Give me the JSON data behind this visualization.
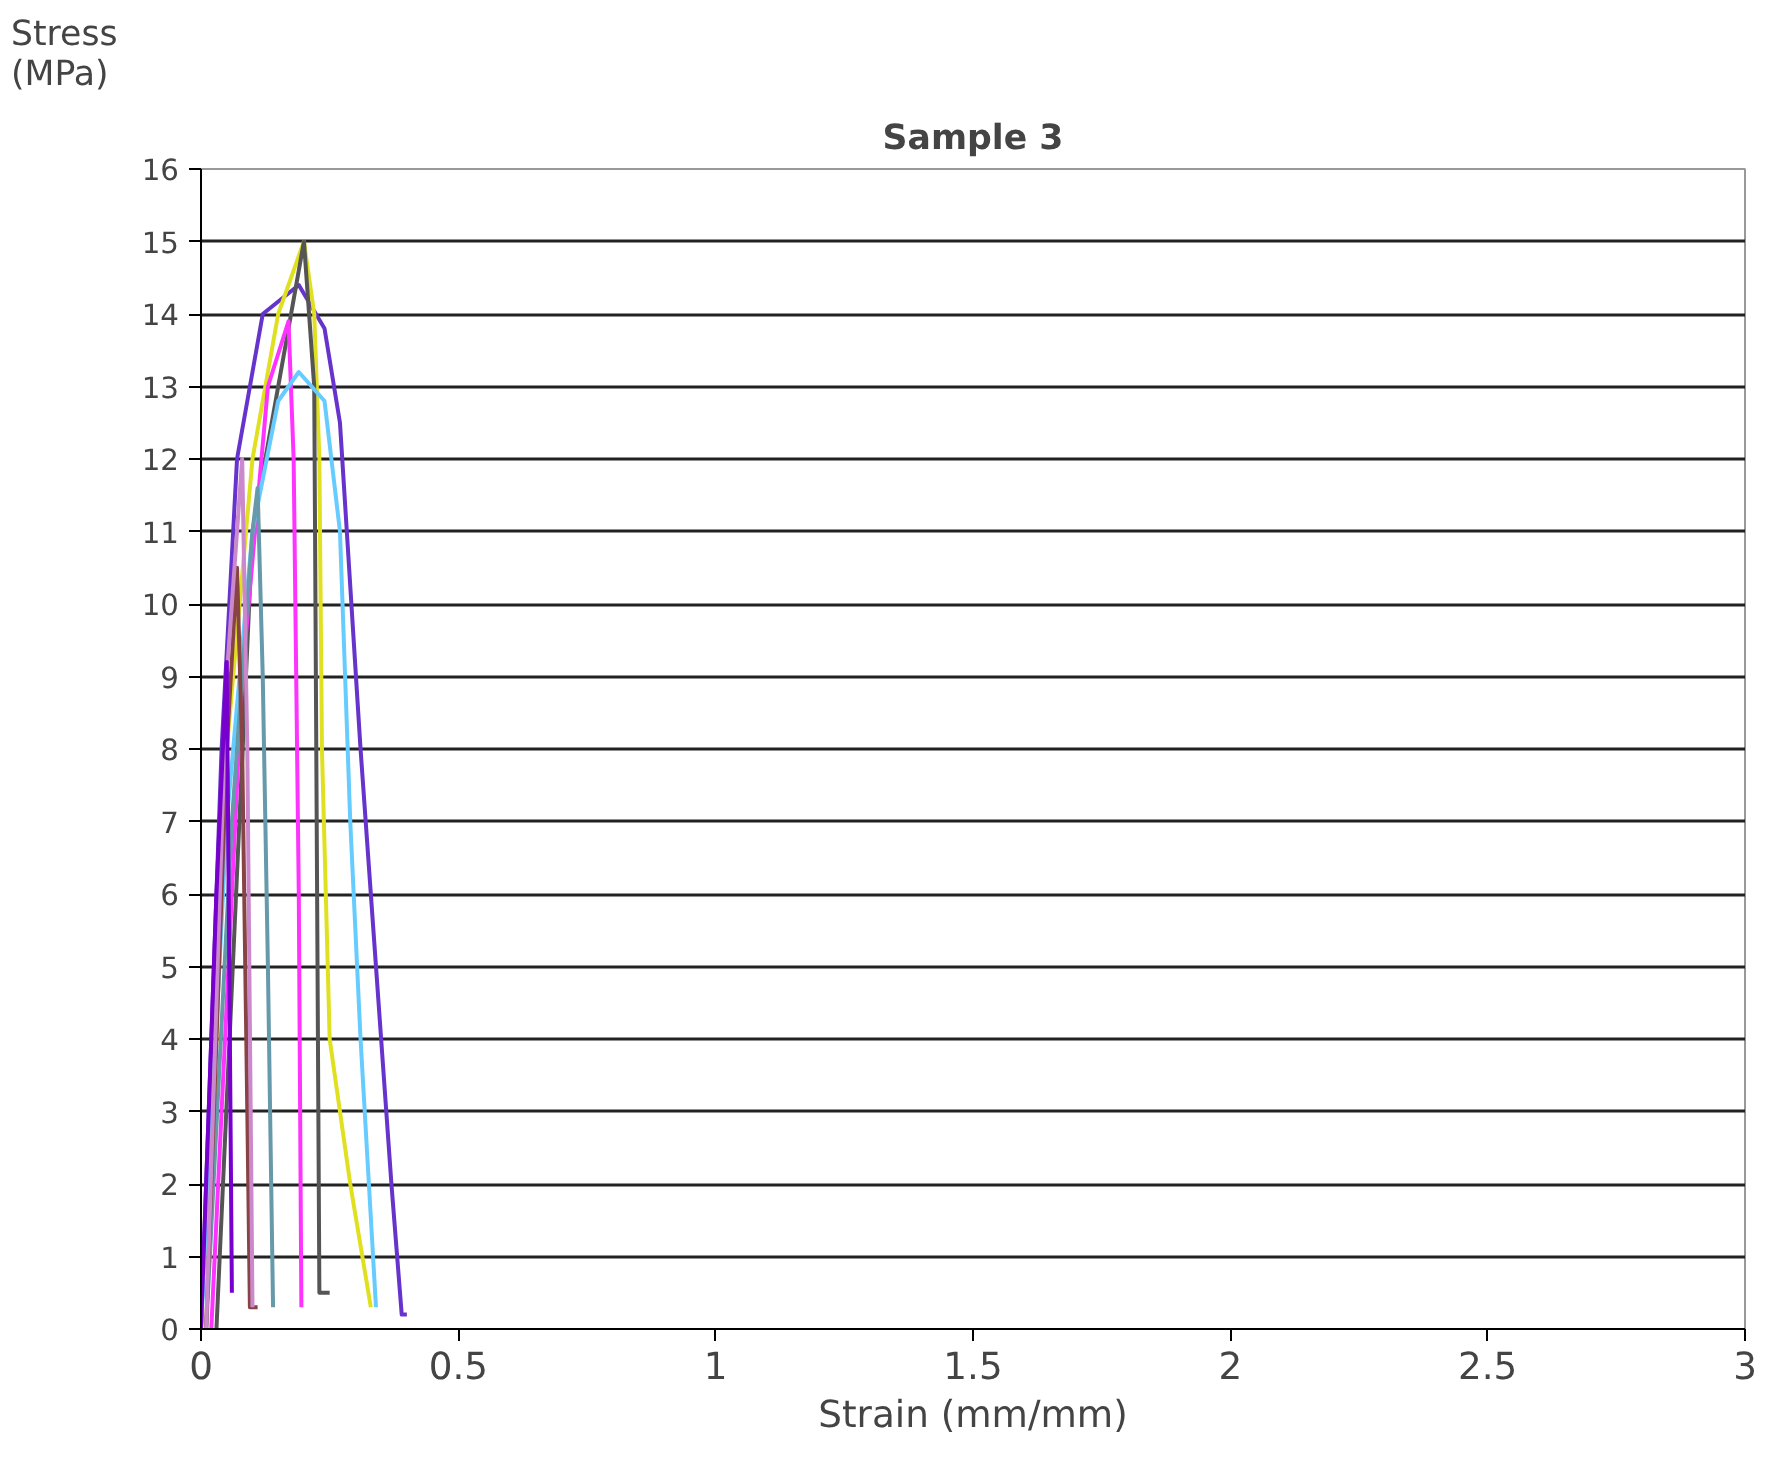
{
  "chart_data": {
    "type": "line",
    "title": "Sample 3",
    "xlabel": "Strain (mm/mm)",
    "ylabel": "Stress (MPa)",
    "xlim": [
      0,
      3
    ],
    "ylim": [
      0,
      16
    ],
    "xticks": [
      0,
      0.5,
      1,
      1.5,
      2,
      2.5,
      3
    ],
    "yticks": [
      0,
      1,
      2,
      3,
      4,
      5,
      6,
      7,
      8,
      9,
      10,
      11,
      12,
      13,
      14,
      15,
      16
    ],
    "grid": "y",
    "marker": "none",
    "line_style": "solid",
    "series": [
      {
        "color": "#6633cc",
        "x": [
          0,
          0.02,
          0.04,
          0.07,
          0.12,
          0.19,
          0.24,
          0.27,
          0.31,
          0.34,
          0.37,
          0.39,
          0.4
        ],
        "values": [
          0,
          4,
          8,
          12,
          14,
          14.4,
          13.8,
          12.5,
          8,
          5,
          2,
          0.2,
          0.2
        ]
      },
      {
        "color": "#e0e020",
        "x": [
          0.01,
          0.05,
          0.1,
          0.15,
          0.2,
          0.22,
          0.23,
          0.235,
          0.25,
          0.29,
          0.33
        ],
        "values": [
          0,
          8,
          12,
          14,
          15,
          14,
          12,
          8,
          4,
          2,
          0.3
        ]
      },
      {
        "color": "#555555",
        "x": [
          0.03,
          0.1,
          0.2,
          0.22,
          0.23,
          0.25
        ],
        "values": [
          0,
          11,
          15,
          13,
          0.5,
          0.5
        ]
      },
      {
        "color": "#ff33ff",
        "x": [
          0.02,
          0.08,
          0.13,
          0.17,
          0.18,
          0.19,
          0.195
        ],
        "values": [
          0,
          9,
          13,
          13.9,
          12,
          6,
          0.3
        ]
      },
      {
        "color": "#66ccff",
        "x": [
          0,
          0.05,
          0.1,
          0.15,
          0.19,
          0.24,
          0.27,
          0.29,
          0.31,
          0.34
        ],
        "values": [
          0,
          7,
          11,
          12.8,
          13.2,
          12.8,
          11,
          7,
          4,
          0.3
        ]
      },
      {
        "color": "#6699aa",
        "x": [
          0.01,
          0.06,
          0.1,
          0.11,
          0.12,
          0.13,
          0.14
        ],
        "values": [
          0,
          7,
          11,
          11.6,
          9,
          5,
          0.3
        ]
      },
      {
        "color": "#884444",
        "x": [
          0.01,
          0.05,
          0.07,
          0.08,
          0.09,
          0.095,
          0.11
        ],
        "values": [
          0,
          8,
          10.5,
          8,
          3,
          0.3,
          0.3
        ]
      },
      {
        "color": "#cc88cc",
        "x": [
          0.01,
          0.05,
          0.08,
          0.09,
          0.1
        ],
        "values": [
          0,
          9,
          12,
          8,
          0.3
        ]
      },
      {
        "color": "#7700cc",
        "x": [
          0,
          0.03,
          0.05,
          0.055,
          0.06
        ],
        "values": [
          0,
          6,
          9.2,
          5,
          0.5
        ]
      }
    ]
  }
}
